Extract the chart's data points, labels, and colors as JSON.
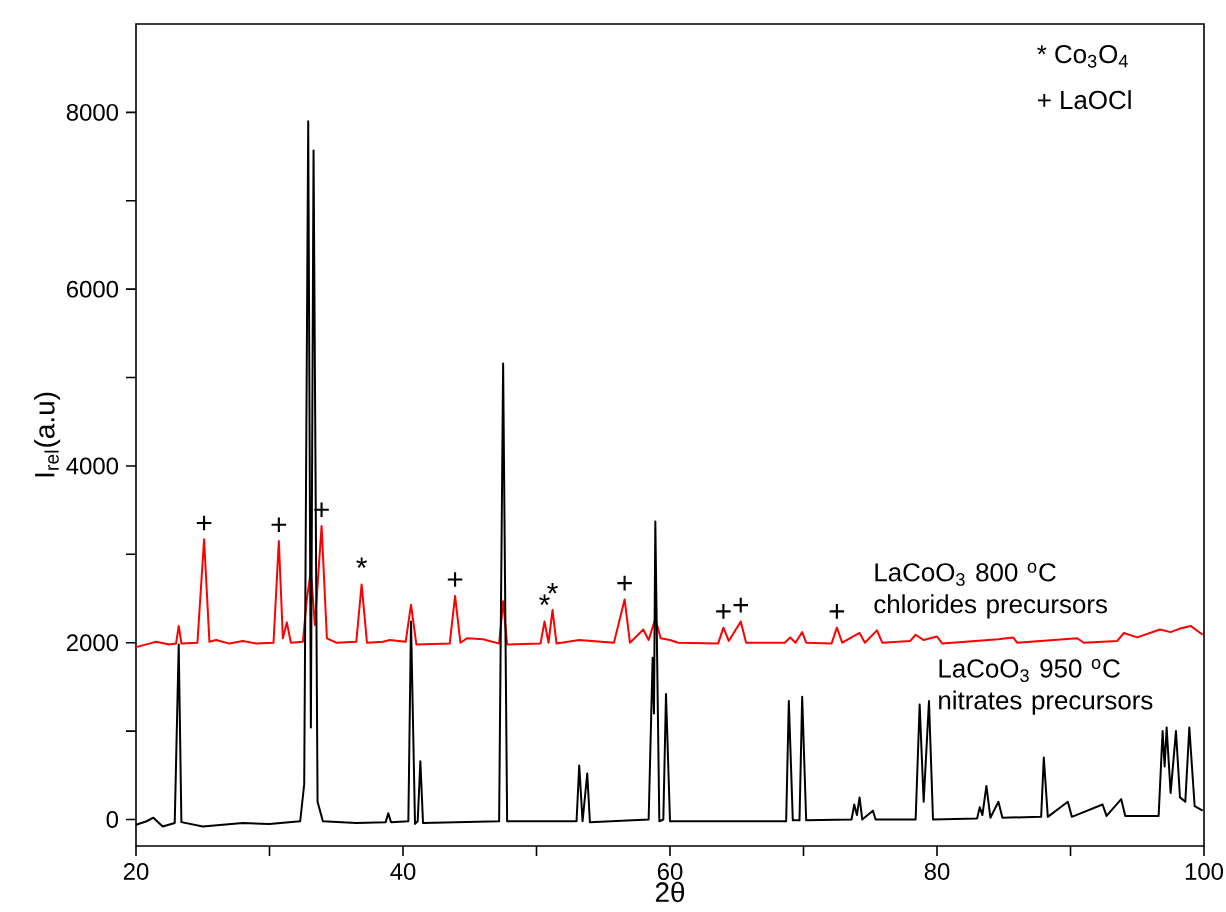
{
  "chart_data": {
    "type": "line",
    "xlabel": "2θ",
    "ylabel": "I$_{rel}$(a.u)",
    "xlim": [
      20,
      100
    ],
    "ylim": [
      -300,
      9000
    ],
    "xticks": [
      20,
      {
        "value": 30,
        "label": null
      },
      40,
      {
        "value": 50,
        "label": null
      },
      60,
      {
        "value": 70,
        "label": null
      },
      80,
      {
        "value": 90,
        "label": null
      },
      100
    ],
    "yticks": [
      0,
      {
        "value": 1000,
        "label": null
      },
      2000,
      {
        "value": 3000,
        "label": null
      },
      4000,
      {
        "value": 5000,
        "label": null
      },
      6000,
      {
        "value": 7000,
        "label": null
      },
      8000
    ],
    "grid": false,
    "legend": false,
    "marker": "none",
    "line_style": "solid",
    "series": [
      {
        "name": "LaCoO$_{3}$ 800 $^{o}$C chlorides precursors",
        "color": "#ff0000",
        "x": [
          20,
          21,
          21.5,
          22.5,
          23.0,
          23.2,
          23.4,
          24.6,
          25.1,
          25.5,
          26,
          27,
          28,
          29,
          30.3,
          30.7,
          31.0,
          31.3,
          31.6,
          32.5,
          32.8,
          33.1,
          33.4,
          33.9,
          34.3,
          35,
          36.5,
          36.9,
          37.3,
          38.5,
          39,
          40.2,
          40.6,
          41.0,
          43.5,
          43.9,
          44.3,
          44.8,
          46,
          47.2,
          47.5,
          47.8,
          50.3,
          50.6,
          50.9,
          51.2,
          51.5,
          53.2,
          55.8,
          56.6,
          57.0,
          58.0,
          58.4,
          58.9,
          59.3,
          60,
          60.6,
          63.6,
          64.0,
          64.4,
          65.3,
          65.7,
          68.6,
          69.0,
          69.4,
          69.9,
          70.2,
          72.1,
          72.5,
          72.9,
          74.2,
          74.6,
          75.5,
          75.9,
          78.0,
          78.4,
          79.0,
          80,
          80.4,
          84.6,
          85.7,
          86,
          90.5,
          91,
          93.5,
          94.0,
          95,
          96.7,
          97.5,
          98.2,
          99.0,
          99.9
        ],
        "values": [
          1950,
          1990,
          2010,
          1980,
          1990,
          2190,
          1990,
          2000,
          3170,
          2010,
          2030,
          1990,
          2020,
          1990,
          2000,
          3150,
          2050,
          2230,
          2000,
          2010,
          2500,
          2810,
          2200,
          3320,
          2050,
          2000,
          2010,
          2660,
          2000,
          2010,
          2030,
          2010,
          2430,
          1980,
          1990,
          2530,
          2000,
          2050,
          2040,
          1990,
          2470,
          1980,
          1990,
          2240,
          2000,
          2370,
          1990,
          2030,
          2000,
          2490,
          2000,
          2150,
          2030,
          2270,
          2050,
          2030,
          2000,
          1990,
          2170,
          2020,
          2240,
          2000,
          2000,
          2060,
          2000,
          2120,
          2000,
          1990,
          2170,
          2000,
          2110,
          2000,
          2140,
          2000,
          2020,
          2090,
          2030,
          2070,
          1990,
          2040,
          2060,
          2000,
          2050,
          2000,
          2020,
          2110,
          2060,
          2150,
          2120,
          2160,
          2190,
          2090
        ]
      },
      {
        "name": "LaCoO$_{3}$ 950 $^{o}$C nitrates precursors",
        "color": "#000000",
        "x": [
          20,
          20.8,
          21.3,
          22,
          22.9,
          23.2,
          23.4,
          25,
          28,
          30,
          32.3,
          32.6,
          32.9,
          33.1,
          33.3,
          33.6,
          34,
          36.5,
          38.7,
          38.9,
          39.1,
          40.4,
          40.6,
          40.9,
          41.1,
          41.3,
          41.5,
          47.2,
          47.5,
          47.8,
          53.0,
          53.2,
          53.45,
          53.8,
          54.0,
          58.4,
          58.7,
          58.8,
          58.9,
          59.2,
          59.5,
          59.7,
          60,
          68.7,
          68.9,
          69.2,
          69.7,
          69.9,
          70.2,
          73.6,
          73.8,
          74.0,
          74.2,
          74.4,
          75.2,
          75.4,
          78.4,
          78.7,
          79.0,
          79.4,
          79.7,
          83.0,
          83.2,
          83.4,
          83.7,
          84.0,
          84.6,
          84.9,
          87.8,
          88.0,
          88.3,
          89.8,
          90.1,
          92.4,
          92.7,
          93.8,
          94.1,
          96.6,
          96.9,
          97.05,
          97.2,
          97.5,
          97.9,
          98.2,
          98.6,
          98.9,
          99.3,
          99.9
        ],
        "values": [
          -60,
          -20,
          20,
          -80,
          -40,
          1980,
          -30,
          -80,
          -40,
          -50,
          -20,
          400,
          7900,
          1040,
          7570,
          200,
          -20,
          -40,
          -30,
          70,
          -30,
          -20,
          2240,
          -50,
          -20,
          660,
          -40,
          -20,
          5160,
          -20,
          -20,
          610,
          -20,
          520,
          -30,
          0,
          1830,
          1200,
          3370,
          -20,
          0,
          1420,
          -20,
          -20,
          1340,
          -10,
          -10,
          1390,
          -10,
          0,
          170,
          50,
          250,
          0,
          100,
          0,
          0,
          1300,
          200,
          1340,
          0,
          10,
          140,
          50,
          380,
          20,
          200,
          20,
          30,
          700,
          30,
          200,
          30,
          170,
          40,
          230,
          40,
          40,
          1000,
          600,
          1040,
          300,
          1000,
          250,
          200,
          1040,
          150,
          100
        ]
      }
    ],
    "annotations": [
      "* Co$_{3}$O$_{4}$",
      "+ LaOCl",
      {
        "text": "+",
        "x": 25.1,
        "y": 3170
      },
      {
        "text": "+",
        "x": 30.7,
        "y": 3150
      },
      {
        "text": "+",
        "x": 33.9,
        "y": 3320
      },
      {
        "text": "*",
        "x": 36.9,
        "y": 2660
      },
      {
        "text": "+",
        "x": 43.9,
        "y": 2530
      },
      {
        "text": "*",
        "x": 50.6,
        "y": 2240
      },
      {
        "text": "*",
        "x": 51.2,
        "y": 2370
      },
      {
        "text": "+",
        "x": 56.6,
        "y": 2490
      },
      {
        "text": "+",
        "x": 64.0,
        "y": 2170
      },
      {
        "text": "+",
        "x": 65.3,
        "y": 2240
      },
      {
        "text": "+",
        "x": 72.5,
        "y": 2170
      }
    ]
  }
}
